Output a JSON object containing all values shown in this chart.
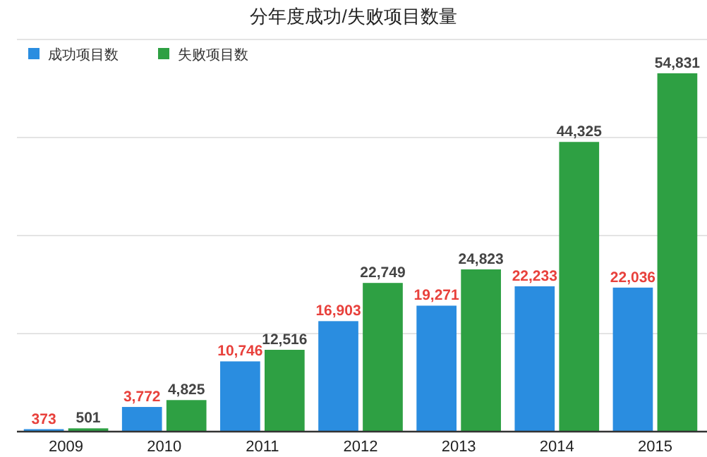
{
  "chart_data": {
    "type": "bar",
    "title": "分年度成功/失败项目数量",
    "categories": [
      "2009",
      "2010",
      "2011",
      "2012",
      "2013",
      "2014",
      "2015"
    ],
    "series": [
      {
        "name": "成功项目数",
        "color": "#2a8de0",
        "values": [
          373,
          3772,
          10746,
          16903,
          19271,
          22233,
          22036
        ],
        "value_labels": [
          "373",
          "3,772",
          "10,746",
          "16,903",
          "19,271",
          "22,233",
          "22,036"
        ]
      },
      {
        "name": "失败项目数",
        "color": "#2ea043",
        "values": [
          501,
          4825,
          12516,
          22749,
          24823,
          44325,
          54831
        ],
        "value_labels": [
          "501",
          "4,825",
          "12,516",
          "22,749",
          "24,823",
          "44,325",
          "54,831"
        ]
      }
    ],
    "ylim": [
      0,
      60000
    ],
    "yticks": [
      {
        "value": 0,
        "label": null
      },
      {
        "value": 15000,
        "label": null
      },
      {
        "value": 30000,
        "label": null
      },
      {
        "value": 45000,
        "label": null
      },
      {
        "value": 60000,
        "label": null
      }
    ],
    "grid": "y",
    "legend": "top left",
    "tick_labels": "x"
  }
}
